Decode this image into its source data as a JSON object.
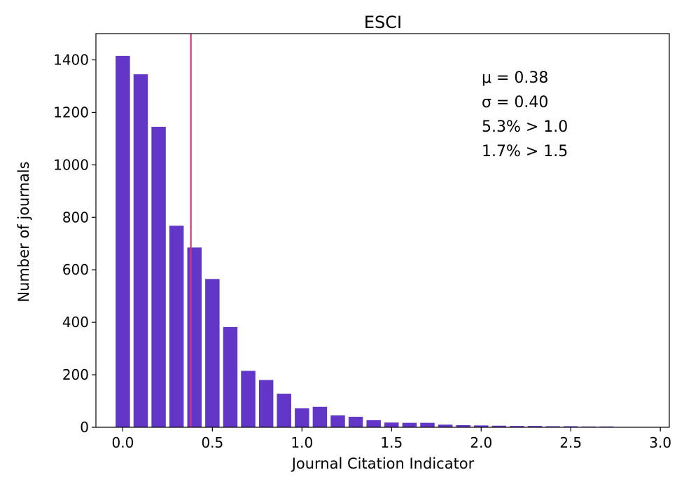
{
  "chart_data": {
    "type": "bar",
    "title": "ESCI",
    "xlabel": "Journal Citation Indicator",
    "ylabel": "Number of journals",
    "xlim": [
      -0.15,
      3.05
    ],
    "ylim": [
      0,
      1500
    ],
    "bin_width": 0.1,
    "x": [
      0.0,
      0.1,
      0.2,
      0.3,
      0.4,
      0.5,
      0.6,
      0.7,
      0.8,
      0.9,
      1.0,
      1.1,
      1.2,
      1.3,
      1.4,
      1.5,
      1.6,
      1.7,
      1.8,
      1.9,
      2.0,
      2.1,
      2.2,
      2.3,
      2.4,
      2.5,
      2.6,
      2.7
    ],
    "values": [
      1415,
      1345,
      1145,
      768,
      685,
      565,
      382,
      215,
      180,
      128,
      72,
      78,
      45,
      40,
      27,
      18,
      17,
      17,
      10,
      8,
      7,
      6,
      5,
      5,
      4,
      4,
      3,
      3
    ],
    "xticks": [
      "0.0",
      "0.5",
      "1.0",
      "1.5",
      "2.0",
      "2.5",
      "3.0"
    ],
    "xtick_values": [
      0.0,
      0.5,
      1.0,
      1.5,
      2.0,
      2.5,
      3.0
    ],
    "yticks": [
      "0",
      "200",
      "400",
      "600",
      "800",
      "1000",
      "1200",
      "1400"
    ],
    "ytick_values": [
      0,
      200,
      400,
      600,
      800,
      1000,
      1200,
      1400
    ],
    "mean_line": 0.38,
    "annotations": [
      "μ = 0.38",
      "σ = 0.40",
      "5.3% > 1.0",
      "1.7% > 1.5"
    ],
    "grid": false,
    "colors": {
      "bar": "#6236c6",
      "mean_line": "#e0307a",
      "axes": "#000000"
    }
  }
}
